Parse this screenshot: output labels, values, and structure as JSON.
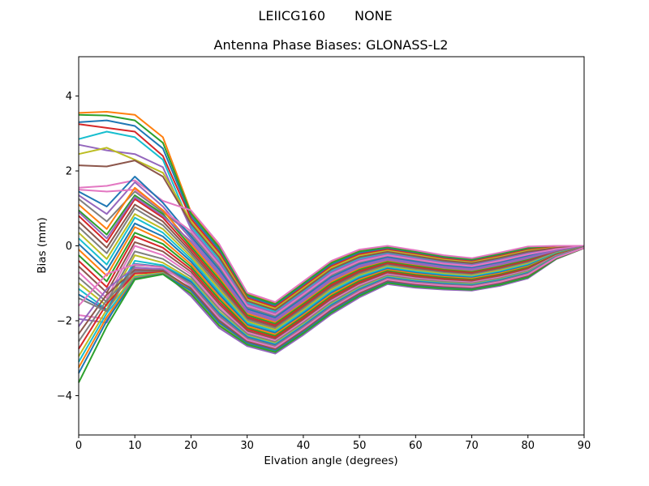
{
  "figure": {
    "suptitle_left": "LEIICG160",
    "suptitle_right": "NONE",
    "background_color": "#ffffff",
    "spine_color": "#000000",
    "text_color": "#000000"
  },
  "chart_data": {
    "type": "line",
    "suptitle": "LEIICG160        NONE",
    "title": "Antenna Phase Biases: GLONASS-L2",
    "xlabel": "Elvation angle (degrees)",
    "ylabel": "Bias (mm)",
    "xlim": [
      0,
      90
    ],
    "ylim": [
      -5.05,
      5.05
    ],
    "xticks": [
      0,
      10,
      20,
      30,
      40,
      50,
      60,
      70,
      80,
      90
    ],
    "yticks": [
      -4,
      -2,
      0,
      2,
      4
    ],
    "grid": false,
    "legend": false,
    "line_width": 2,
    "x": [
      0,
      5,
      10,
      15,
      20,
      25,
      30,
      35,
      40,
      45,
      50,
      55,
      60,
      65,
      70,
      75,
      80,
      85,
      90
    ],
    "band_top": [
      0.95,
      0.05,
      -1.25,
      -1.5,
      -0.95,
      -0.4,
      -0.1,
      0.0,
      -0.12,
      -0.25,
      -0.33,
      -0.18,
      -0.02,
      0.0,
      0.0
    ],
    "band_bottom": [
      -1.3,
      -2.15,
      -2.65,
      -2.85,
      -2.35,
      -1.8,
      -1.35,
      -1.0,
      -1.1,
      -1.15,
      -1.18,
      -1.05,
      -0.85,
      -0.35,
      -0.06
    ],
    "palette": [
      "#1f77b4",
      "#ff7f0e",
      "#2ca02c",
      "#d62728",
      "#9467bd",
      "#8c564b",
      "#e377c2",
      "#7f7f7f",
      "#bcbd22",
      "#17becf"
    ],
    "series": [
      {
        "color": "#1f77b4",
        "head": [
          3.3,
          3.35,
          3.2,
          2.6
        ],
        "t": 0.93
      },
      {
        "color": "#ff7f0e",
        "head": [
          3.55,
          3.58,
          3.5,
          2.9
        ],
        "t": 0.98
      },
      {
        "color": "#2ca02c",
        "head": [
          3.5,
          3.48,
          3.35,
          2.75
        ],
        "t": 0.96
      },
      {
        "color": "#d62728",
        "head": [
          3.25,
          3.15,
          3.05,
          2.4
        ],
        "t": 0.9
      },
      {
        "color": "#17becf",
        "head": [
          2.85,
          3.05,
          2.9,
          2.3
        ],
        "t": 0.81
      },
      {
        "color": "#9467bd",
        "head": [
          2.7,
          2.55,
          2.45,
          2.1
        ],
        "t": 0.78
      },
      {
        "color": "#bcbd22",
        "head": [
          2.45,
          2.62,
          2.3,
          1.95
        ],
        "t": 0.87
      },
      {
        "color": "#8c564b",
        "head": [
          2.15,
          2.12,
          2.28,
          1.85
        ],
        "t": 0.84
      },
      {
        "color": "#e377c2",
        "head": [
          1.55,
          1.6,
          1.75,
          1.2
        ],
        "t": 1.0
      },
      {
        "color": "#7f7f7f",
        "head": [
          1.25,
          0.65,
          1.45,
          0.9
        ],
        "t": 0.72
      },
      {
        "color": "#1f77b4",
        "head": [
          1.45,
          1.05,
          1.85,
          1.15
        ],
        "t": 0.69
      },
      {
        "color": "#9467bd",
        "head": [
          1.35,
          0.85,
          1.7,
          1.05
        ],
        "t": 0.66
      },
      {
        "color": "#e377c2",
        "head": [
          1.5,
          1.45,
          1.5,
          0.95
        ],
        "t": 0.75
      },
      {
        "color": "#ff7f0e",
        "head": [
          1.1,
          0.45,
          1.55,
          0.95
        ],
        "t": 0.6
      },
      {
        "color": "#2ca02c",
        "head": [
          0.95,
          0.3,
          1.35,
          0.85
        ],
        "t": 0.57
      },
      {
        "color": "#d62728",
        "head": [
          0.8,
          0.1,
          1.25,
          0.75
        ],
        "t": 0.54
      },
      {
        "color": "#9467bd",
        "head": [
          0.9,
          0.2,
          1.3,
          0.8
        ],
        "t": 0.63
      },
      {
        "color": "#8c564b",
        "head": [
          0.65,
          -0.05,
          1.1,
          0.65
        ],
        "t": 0.51
      },
      {
        "color": "#7f7f7f",
        "head": [
          0.5,
          -0.2,
          1.0,
          0.55
        ],
        "t": 0.48
      },
      {
        "color": "#bcbd22",
        "head": [
          0.35,
          -0.35,
          0.85,
          0.45
        ],
        "t": 0.45
      },
      {
        "color": "#17becf",
        "head": [
          0.2,
          -0.5,
          0.75,
          0.35
        ],
        "t": 0.42
      },
      {
        "color": "#1f77b4",
        "head": [
          0.05,
          -0.65,
          0.6,
          0.25
        ],
        "t": 0.39
      },
      {
        "color": "#ff7f0e",
        "head": [
          -0.1,
          -0.8,
          0.5,
          0.15
        ],
        "t": 0.36
      },
      {
        "color": "#2ca02c",
        "head": [
          -0.25,
          -0.95,
          0.35,
          0.05
        ],
        "t": 0.33
      },
      {
        "color": "#d62728",
        "head": [
          -0.4,
          -1.1,
          0.25,
          -0.05
        ],
        "t": 0.3
      },
      {
        "color": "#8c564b",
        "head": [
          -0.55,
          -1.25,
          0.1,
          -0.15
        ],
        "t": 0.27
      },
      {
        "color": "#e377c2",
        "head": [
          -0.7,
          -1.4,
          0.0,
          -0.25
        ],
        "t": 0.24
      },
      {
        "color": "#7f7f7f",
        "head": [
          -0.85,
          -1.5,
          -0.15,
          -0.35
        ],
        "t": 0.21
      },
      {
        "color": "#bcbd22",
        "head": [
          -1.0,
          -1.6,
          -0.25,
          -0.45
        ],
        "t": 0.18
      },
      {
        "color": "#17becf",
        "head": [
          -1.15,
          -1.7,
          -0.4,
          -0.52
        ],
        "t": 0.165
      },
      {
        "color": "#1f77b4",
        "head": [
          -1.3,
          -1.72,
          -0.48,
          -0.56
        ],
        "t": 0.15
      },
      {
        "color": "#e377c2",
        "head": [
          -1.85,
          -1.95,
          -0.6,
          -0.64
        ],
        "t": 0.0
      },
      {
        "color": "#9467bd",
        "head": [
          -1.95,
          -2.05,
          -0.66,
          -0.7
        ],
        "t": -0.02
      },
      {
        "color": "#9467bd",
        "head": [
          -2.15,
          -1.15,
          -0.58,
          -0.62
        ],
        "t": 0.13
      },
      {
        "color": "#7f7f7f",
        "head": [
          -2.55,
          -1.45,
          -0.7,
          -0.68
        ],
        "t": 0.035
      },
      {
        "color": "#d62728",
        "head": [
          -2.75,
          -1.55,
          -0.74,
          -0.7
        ],
        "t": 0.05
      },
      {
        "color": "#bcbd22",
        "head": [
          -2.95,
          -1.7,
          -0.8,
          -0.72
        ],
        "t": 0.025
      },
      {
        "color": "#17becf",
        "head": [
          -3.1,
          -1.8,
          -0.84,
          -0.73
        ],
        "t": 0.08
      },
      {
        "color": "#ff7f0e",
        "head": [
          -3.25,
          -1.9,
          -0.86,
          -0.74
        ],
        "t": 0.06
      },
      {
        "color": "#1f77b4",
        "head": [
          -3.4,
          -2.0,
          -0.88,
          -0.75
        ],
        "t": 0.045
      },
      {
        "color": "#2ca02c",
        "head": [
          -3.65,
          -2.15,
          -0.9,
          -0.76
        ],
        "t": 0.01
      },
      {
        "color": "#8c564b",
        "head": [
          -2.35,
          -1.3,
          -0.64,
          -0.66
        ],
        "t": 0.07
      },
      {
        "color": "#7f7f7f",
        "head": [
          -1.4,
          -1.75,
          -0.52,
          -0.56
        ],
        "t": 0.125
      },
      {
        "color": "#e377c2",
        "head": [
          -1.6,
          -0.75,
          -0.5,
          -0.58
        ],
        "t": 0.1
      }
    ]
  }
}
